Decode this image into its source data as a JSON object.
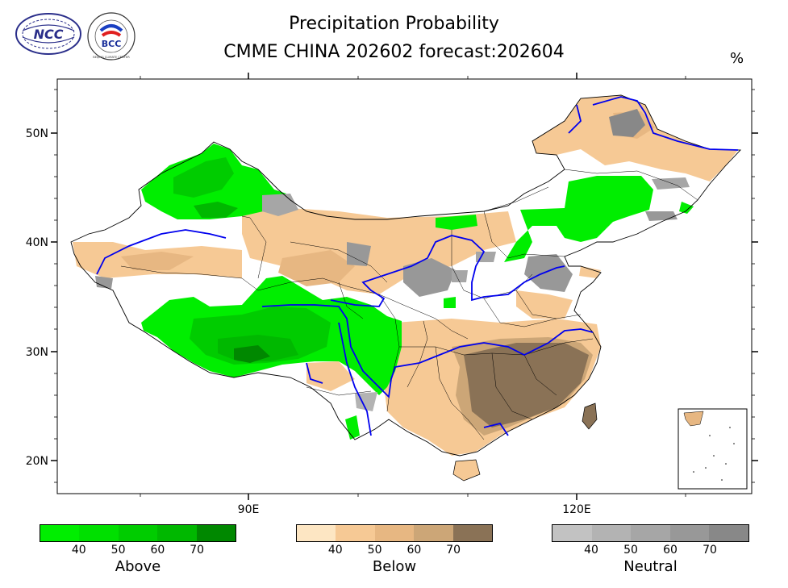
{
  "title": {
    "line1": "Precipitation Probability",
    "line2": "CMME CHINA 202602 forecast:202604",
    "unit": "%"
  },
  "logos": {
    "ncc": "NCC",
    "bcc": "BCC",
    "bcc_ring": "BEIJING CLIMATE CENTER"
  },
  "map": {
    "y_ticks": [
      "50N",
      "40N",
      "30N",
      "20N"
    ],
    "x_ticks": [
      "90E",
      "120E"
    ]
  },
  "legends": [
    {
      "name": "Above",
      "ticks": [
        "40",
        "50",
        "60",
        "70"
      ],
      "colors": [
        "#00ee00",
        "#00e000",
        "#00cc00",
        "#00b800",
        "#008800"
      ]
    },
    {
      "name": "Below",
      "ticks": [
        "40",
        "50",
        "60",
        "70"
      ],
      "colors": [
        "#fde6c3",
        "#f6c995",
        "#e7b782",
        "#cca677",
        "#8a7256"
      ]
    },
    {
      "name": "Neutral",
      "ticks": [
        "40",
        "50",
        "60",
        "70"
      ],
      "colors": [
        "#c2c2c2",
        "#b3b3b3",
        "#a6a6a6",
        "#989898",
        "#888888"
      ]
    }
  ]
}
